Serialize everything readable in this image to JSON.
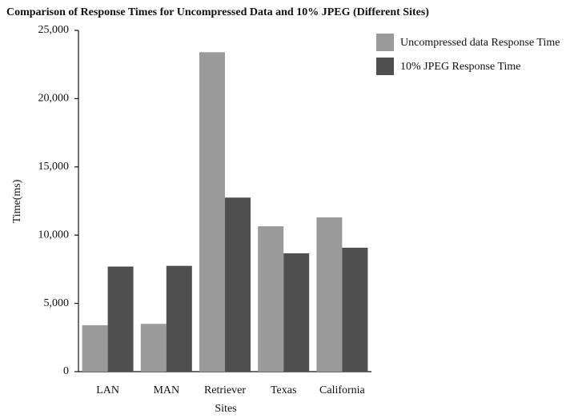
{
  "chart_data": {
    "type": "bar",
    "title": "Comparison of Response Times for Uncompressed Data and 10% JPEG (Different Sites)",
    "x_label": "Sites",
    "y_label": "Time(ms)",
    "categories": [
      "LAN",
      "MAN",
      "Retriever",
      "Texas",
      "California"
    ],
    "series": [
      {
        "name": "Uncompressed data Response Time",
        "color": "#9a9a9a",
        "values": [
          3400,
          3500,
          23400,
          10650,
          11300
        ]
      },
      {
        "name": "10% JPEG Response Time",
        "color": "#4f4f4f",
        "values": [
          7700,
          7750,
          12750,
          8670,
          9080
        ]
      }
    ],
    "ylim": [
      0,
      25000
    ],
    "yticks": [
      0,
      {
        "value": 5000,
        "label": "5,000"
      },
      {
        "value": 10000,
        "label": "10,000"
      },
      {
        "value": 15000,
        "label": "15,000"
      },
      {
        "value": 20000,
        "label": "20,000"
      },
      {
        "value": 25000,
        "label": "25,000"
      }
    ],
    "grid": false,
    "legend": "top-right"
  }
}
